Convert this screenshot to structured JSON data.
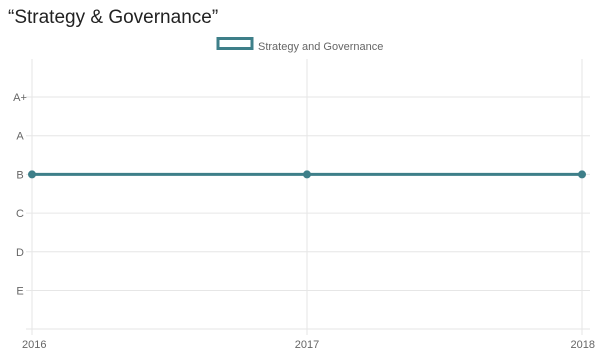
{
  "chart_data": {
    "type": "line",
    "title": "“Strategy & Governance”",
    "x": [
      "2016",
      "2017",
      "2018"
    ],
    "y_categories": [
      "E",
      "D",
      "C",
      "B",
      "A",
      "A+"
    ],
    "series": [
      {
        "name": "Strategy and Governance",
        "values": [
          "B",
          "B",
          "B"
        ]
      }
    ],
    "xlabel": "",
    "ylabel": "",
    "grid": true,
    "legend_position": "top-center",
    "colors": {
      "series": "#3e7f89",
      "grid": "#e6e6e6"
    }
  }
}
